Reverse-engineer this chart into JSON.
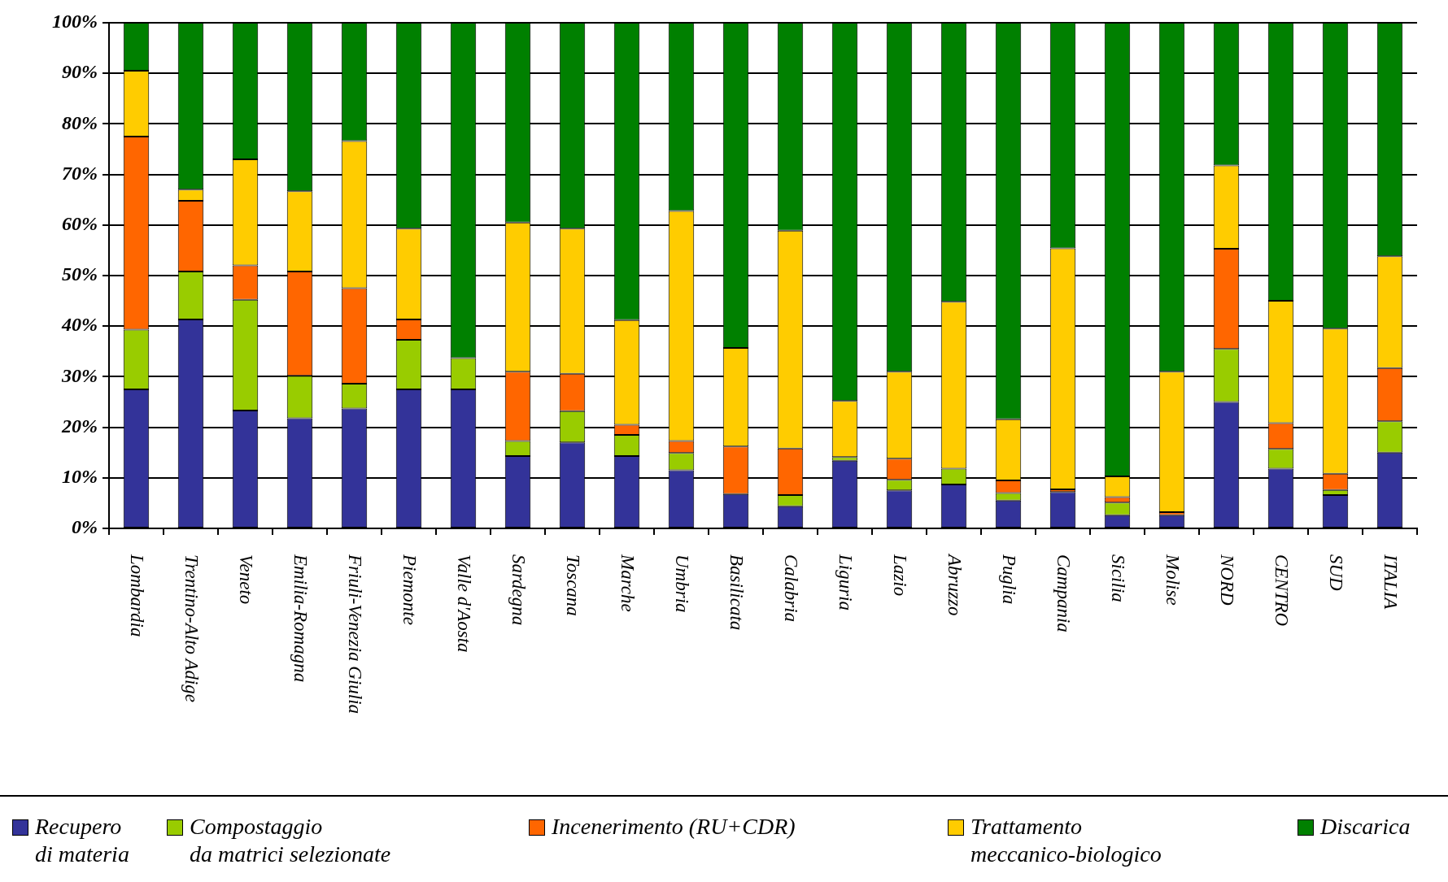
{
  "chart_data": {
    "type": "bar",
    "stacked": true,
    "grid": "y",
    "legend": "bottom",
    "categories": [
      "Lombardia",
      "Trentino-Alto Adige",
      "Veneto",
      "Emilia-Romagna",
      "Friuli-Venezia Giulia",
      "Piemonte",
      "Valle d'Aosta",
      "Sardegna",
      "Toscana",
      "Marche",
      "Umbria",
      "Basilicata",
      "Calabria",
      "Liguria",
      "Lazio",
      "Abruzzo",
      "Puglia",
      "Campania",
      "Sicilia",
      "Molise",
      "NORD",
      "CENTRO",
      "SUD",
      "ITALIA"
    ],
    "ylim": [
      0,
      100
    ],
    "yticks": [
      {
        "value": 0,
        "label": "0%"
      },
      {
        "value": 10,
        "label": "10%"
      },
      {
        "value": 20,
        "label": "20%"
      },
      {
        "value": 30,
        "label": "30%"
      },
      {
        "value": 40,
        "label": "40%"
      },
      {
        "value": 50,
        "label": "50%"
      },
      {
        "value": 60,
        "label": "60%"
      },
      {
        "value": 70,
        "label": "70%"
      },
      {
        "value": 80,
        "label": "80%"
      },
      {
        "value": 90,
        "label": "90%"
      },
      {
        "value": 100,
        "label": "100%"
      }
    ],
    "series": [
      {
        "name": "Recupero\ndi materia",
        "color": "#333399",
        "values": [
          27.5,
          41.3,
          23.3,
          21.8,
          23.7,
          27.5,
          27.5,
          14.3,
          17,
          14.3,
          11.5,
          6.8,
          4.4,
          13.4,
          7.5,
          8.7,
          5.5,
          7.2,
          2.6,
          2.6,
          25,
          11.8,
          6.6,
          15
        ]
      },
      {
        "name": "Compostaggio\nda matrici selezionate",
        "color": "#99cc00",
        "values": [
          11.8,
          9.5,
          21.9,
          8.4,
          4.9,
          9.8,
          6.2,
          3,
          6.2,
          4.2,
          3.4,
          0,
          2.2,
          0.7,
          2.1,
          3.1,
          1.5,
          0,
          2.5,
          0,
          10.5,
          3.9,
          1,
          6.2
        ]
      },
      {
        "name": "Incenerimento (RU+CDR)",
        "color": "#ff6600",
        "values": [
          38.2,
          14,
          6.8,
          20.6,
          18.9,
          4,
          0,
          13.7,
          7.4,
          2,
          2.4,
          9.4,
          9.2,
          0,
          4.2,
          0,
          2.5,
          0.5,
          1.1,
          0.6,
          19.8,
          5.1,
          3.2,
          10.5
        ]
      },
      {
        "name": "Trattamento\nmeccanico-biologico",
        "color": "#ffcc00",
        "values": [
          13,
          2.2,
          21,
          15.9,
          29.1,
          18,
          0,
          29.5,
          28.7,
          20.7,
          45.5,
          19.5,
          43.1,
          11.1,
          17.2,
          33,
          12.1,
          47.7,
          4.1,
          27.8,
          16.5,
          24.2,
          28.7,
          22.1
        ]
      },
      {
        "name": "Discarica",
        "color": "#008000",
        "values": [
          9.5,
          33,
          27,
          33.3,
          23.4,
          40.7,
          66.3,
          39.5,
          40.7,
          58.8,
          37.2,
          64.3,
          41.1,
          74.8,
          69,
          55.2,
          78.4,
          44.7,
          89.7,
          69,
          28.2,
          55,
          60.5,
          46.2
        ]
      }
    ]
  }
}
